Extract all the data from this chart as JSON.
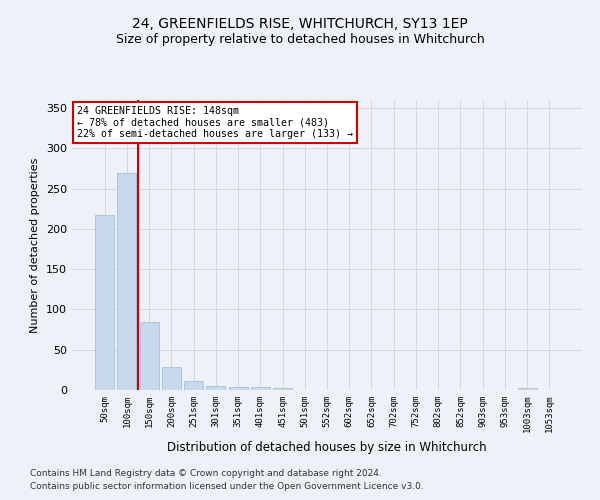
{
  "title": "24, GREENFIELDS RISE, WHITCHURCH, SY13 1EP",
  "subtitle": "Size of property relative to detached houses in Whitchurch",
  "xlabel": "Distribution of detached houses by size in Whitchurch",
  "ylabel": "Number of detached properties",
  "bar_color": "#c9d9ec",
  "bar_edge_color": "#a0b8d8",
  "grid_color": "#d0d8e8",
  "property_label": "24 GREENFIELDS RISE: 148sqm",
  "annotation_line1": "← 78% of detached houses are smaller (483)",
  "annotation_line2": "22% of semi-detached houses are larger (133) →",
  "annotation_box_color": "#ffffff",
  "annotation_border_color": "#cc0000",
  "vline_color": "#cc0000",
  "categories": [
    "50sqm",
    "100sqm",
    "150sqm",
    "200sqm",
    "251sqm",
    "301sqm",
    "351sqm",
    "401sqm",
    "451sqm",
    "501sqm",
    "552sqm",
    "602sqm",
    "652sqm",
    "702sqm",
    "752sqm",
    "802sqm",
    "852sqm",
    "903sqm",
    "953sqm",
    "1003sqm",
    "1053sqm"
  ],
  "values": [
    217,
    270,
    84,
    29,
    11,
    5,
    4,
    4,
    3,
    0,
    0,
    0,
    0,
    0,
    0,
    0,
    0,
    0,
    0,
    3,
    0
  ],
  "ylim": [
    0,
    360
  ],
  "yticks": [
    0,
    50,
    100,
    150,
    200,
    250,
    300,
    350
  ],
  "footnote1": "Contains HM Land Registry data © Crown copyright and database right 2024.",
  "footnote2": "Contains public sector information licensed under the Open Government Licence v3.0.",
  "bg_color": "#eef2f8",
  "title_fontsize": 10,
  "subtitle_fontsize": 9,
  "ylabel_fontsize": 8,
  "xlabel_fontsize": 8.5
}
